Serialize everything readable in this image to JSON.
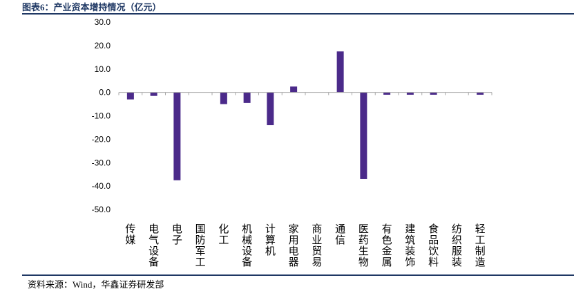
{
  "header": {
    "title": "图表6：产业资本增持情况（亿元）"
  },
  "footer": {
    "source": "资料来源：Wind，华鑫证券研发部"
  },
  "chart_data": {
    "type": "bar",
    "title": "图表6：产业资本增持情况（亿元）",
    "xlabel": "",
    "ylabel": "",
    "ylim": [
      -50,
      30
    ],
    "yticks": [
      "30.0",
      "20.0",
      "10.0",
      "0.0",
      "-10.0",
      "-20.0",
      "-30.0",
      "-40.0",
      "-50.0"
    ],
    "ytick_values": [
      30,
      20,
      10,
      0,
      -10,
      -20,
      -30,
      -40,
      -50
    ],
    "grid": false,
    "legend": "none",
    "bar_color": "#4b2a8a",
    "categories": [
      "传媒",
      "电气设备",
      "电子",
      "国防军工",
      "化工",
      "机械设备",
      "计算机",
      "家用电器",
      "商业贸易",
      "通信",
      "医药生物",
      "有色金属",
      "建筑装饰",
      "食品饮料",
      "纺织服装",
      "轻工制造"
    ],
    "values": [
      -3.0,
      -1.5,
      -37.5,
      0,
      -5.0,
      -4.5,
      -14.0,
      2.5,
      0,
      17.5,
      -37.0,
      -1.0,
      -1.0,
      -1.0,
      0,
      -1.0
    ]
  }
}
